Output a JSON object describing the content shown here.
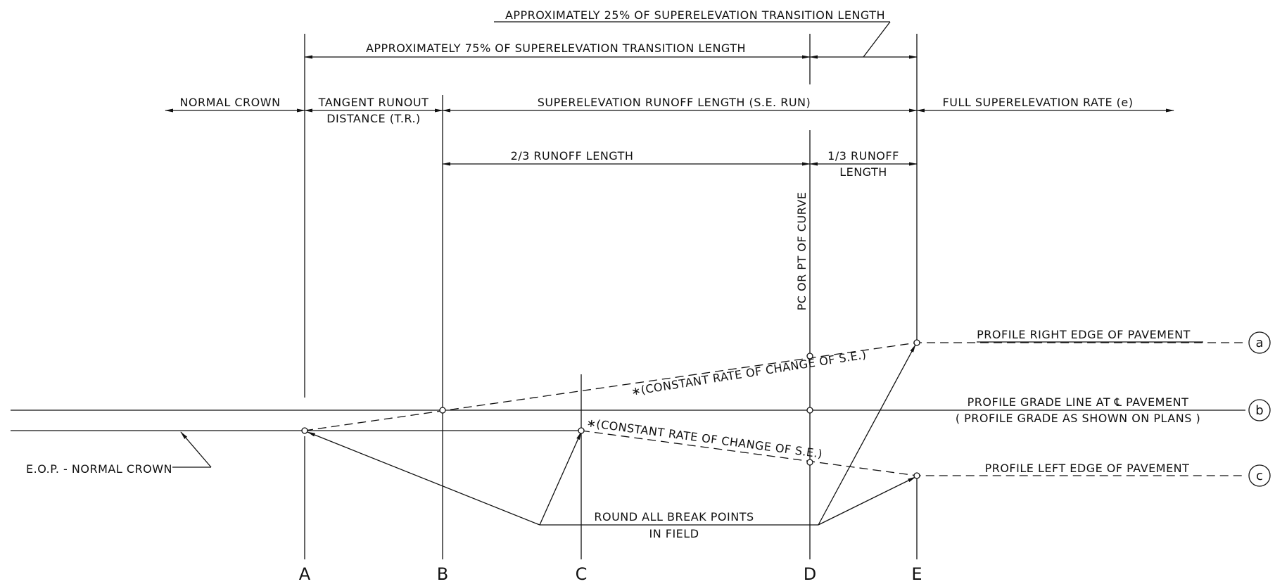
{
  "labels": {
    "transition_25": "APPROXIMATELY 25% OF SUPERELEVATION TRANSITION LENGTH",
    "transition_75": "APPROXIMATELY 75% OF SUPERELEVATION TRANSITION LENGTH",
    "normal_crown": "NORMAL CROWN",
    "tangent_runout_1": "TANGENT RUNOUT",
    "tangent_runout_2": "DISTANCE (T.R.)",
    "se_runoff": "SUPERELEVATION RUNOFF LENGTH (S.E. RUN)",
    "full_se": "FULL SUPERELEVATION RATE (e)",
    "two_thirds": "2/3 RUNOFF LENGTH",
    "one_third_1": "1/3 RUNOFF",
    "one_third_2": "LENGTH",
    "pc_pt": "PC OR PT OF CURVE",
    "right_edge": "PROFILE RIGHT EDGE OF PAVEMENT",
    "grade_line": "PROFILE GRADE LINE AT ℄ PAVEMENT",
    "grade_note": "( PROFILE GRADE AS SHOWN ON PLANS )",
    "left_edge": "PROFILE LEFT EDGE OF PAVEMENT",
    "constant_rate_upper": "∗(CONSTANT RATE OF CHANGE OF S.E.)",
    "constant_rate_lower": "∗(CONSTANT RATE OF CHANGE OF S.E.)",
    "eop": "E.O.P. - NORMAL CROWN",
    "round_1": "ROUND ALL BREAK POINTS",
    "round_2": "IN FIELD"
  },
  "stations": [
    "A",
    "B",
    "C",
    "D",
    "E"
  ],
  "callouts": [
    "a",
    "b",
    "c"
  ]
}
